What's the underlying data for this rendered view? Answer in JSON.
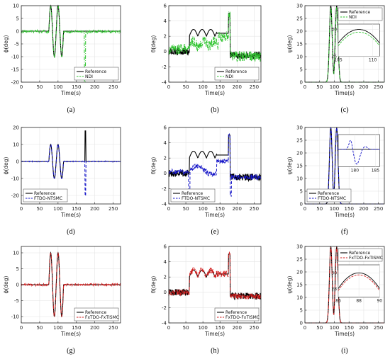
{
  "colors": {
    "reference": "#000000",
    "ndi": "#2ec42e",
    "ftdo": "#1717c8",
    "fxtdo": "#d21e1e",
    "grid": "#e4e4e4",
    "axis": "#262626"
  },
  "chart_data": [
    {
      "id": "a",
      "letter": "(a)",
      "type": "line",
      "kind": "phi",
      "ylabel": "ϕ(deg)",
      "xlabel": "Time(s)",
      "xlim": [
        0,
        270
      ],
      "ylim": [
        -20,
        10
      ],
      "xticks": [
        0,
        50,
        100,
        150,
        200,
        250
      ],
      "yticks": [
        -20,
        -15,
        -10,
        -5,
        0,
        5,
        10
      ],
      "legend": {
        "position": "bottom-right",
        "entries": [
          "Reference",
          "NDI"
        ]
      },
      "series": [
        {
          "name": "Reference",
          "color": "#000000",
          "dash": "solid"
        },
        {
          "name": "NDI",
          "color": "#2ec42e",
          "dash": "dashdot"
        }
      ]
    },
    {
      "id": "b",
      "letter": "(b)",
      "type": "line",
      "kind": "theta",
      "ylabel": "θ(deg)",
      "xlabel": "Time(s)",
      "xlim": [
        0,
        270
      ],
      "ylim": [
        -4,
        6
      ],
      "xticks": [
        0,
        50,
        100,
        150,
        200,
        250
      ],
      "yticks": [
        -4,
        -2,
        0,
        2,
        4,
        6
      ],
      "legend": {
        "position": "bottom-right",
        "entries": [
          "Reference",
          "NDI"
        ]
      },
      "series": [
        {
          "name": "Reference",
          "color": "#000000",
          "dash": "solid"
        },
        {
          "name": "NDI",
          "color": "#2ec42e",
          "dash": "dashdot"
        }
      ]
    },
    {
      "id": "c",
      "letter": "(c)",
      "type": "line",
      "kind": "psi",
      "ylabel": "ψ(deg)",
      "xlabel": "Time(s)",
      "xlim": [
        0,
        270
      ],
      "ylim": [
        0,
        30
      ],
      "xticks": [
        0,
        50,
        100,
        150,
        200,
        250
      ],
      "yticks": [
        0,
        5,
        10,
        15,
        20,
        25,
        30
      ],
      "legend": {
        "position": "top-right",
        "entries": [
          "Reference",
          "NDI"
        ]
      },
      "series": [
        {
          "name": "Reference",
          "color": "#000000",
          "dash": "solid"
        },
        {
          "name": "NDI",
          "color": "#2ec42e",
          "dash": "dashdot"
        }
      ],
      "inset": {
        "xlim": [
          105,
          111
        ],
        "ylim": [
          25,
          31
        ],
        "xticks": [
          105,
          110
        ],
        "yticks": [
          25,
          30
        ]
      }
    },
    {
      "id": "d",
      "letter": "(d)",
      "type": "line",
      "kind": "phi",
      "ylabel": "ϕ(deg)",
      "xlabel": "Time(s)",
      "xlim": [
        0,
        270
      ],
      "ylim": [
        -25,
        20
      ],
      "xticks": [
        0,
        50,
        100,
        150,
        200,
        250
      ],
      "yticks": [
        -20,
        -10,
        0,
        10,
        20
      ],
      "legend": {
        "position": "bottom-left",
        "entries": [
          "Reference",
          "FTDO-NTSMC"
        ]
      },
      "series": [
        {
          "name": "Reference",
          "color": "#000000",
          "dash": "solid"
        },
        {
          "name": "FTDO-NTSMC",
          "color": "#1717c8",
          "dash": "dashed"
        }
      ]
    },
    {
      "id": "e",
      "letter": "(e)",
      "type": "line",
      "kind": "theta",
      "ylabel": "θ(deg)",
      "xlabel": "Time(s)",
      "xlim": [
        0,
        270
      ],
      "ylim": [
        -4,
        6
      ],
      "xticks": [
        0,
        50,
        100,
        150,
        200,
        250
      ],
      "yticks": [
        -4,
        -2,
        0,
        2,
        4,
        6
      ],
      "legend": {
        "position": "bottom-left",
        "entries": [
          "Reference",
          "FTDO-NTSMC"
        ]
      },
      "series": [
        {
          "name": "Reference",
          "color": "#000000",
          "dash": "solid"
        },
        {
          "name": "FTDO-NTSMC",
          "color": "#1717c8",
          "dash": "dashed"
        }
      ]
    },
    {
      "id": "f",
      "letter": "(f)",
      "type": "line",
      "kind": "psi",
      "ylabel": "ψ(deg)",
      "xlabel": "Time(s)",
      "xlim": [
        0,
        270
      ],
      "ylim": [
        0,
        30
      ],
      "xticks": [
        0,
        50,
        100,
        150,
        200,
        250
      ],
      "yticks": [
        0,
        5,
        10,
        15,
        20,
        25,
        30
      ],
      "legend": {
        "position": "bottom-left",
        "entries": [
          "Reference",
          "FTDO-NTSMC"
        ]
      },
      "series": [
        {
          "name": "Reference",
          "color": "#000000",
          "dash": "solid"
        },
        {
          "name": "FTDO-NTSMC",
          "color": "#1717c8",
          "dash": "dashed"
        }
      ],
      "inset": {
        "xlim": [
          176,
          186
        ],
        "ylim": [
          -7,
          6
        ],
        "xticks": [
          180,
          185
        ],
        "yticks": []
      }
    },
    {
      "id": "g",
      "letter": "(g)",
      "type": "line",
      "kind": "phi",
      "ylabel": "ϕ(deg)",
      "xlabel": "Time(s)",
      "xlim": [
        0,
        270
      ],
      "ylim": [
        -12,
        12
      ],
      "xticks": [
        0,
        50,
        100,
        150,
        200,
        250
      ],
      "yticks": [
        -10,
        -5,
        0,
        5,
        10
      ],
      "legend": {
        "position": "bottom-right",
        "entries": [
          "Reference",
          "FxTDO-FxTISMC"
        ]
      },
      "series": [
        {
          "name": "Reference",
          "color": "#000000",
          "dash": "solid"
        },
        {
          "name": "FxTDO-FxTISMC",
          "color": "#d21e1e",
          "dash": "dashdot"
        }
      ]
    },
    {
      "id": "h",
      "letter": "(h)",
      "type": "line",
      "kind": "theta",
      "ylabel": "θ(deg)",
      "xlabel": "Time(s)",
      "xlim": [
        0,
        270
      ],
      "ylim": [
        -4,
        6
      ],
      "xticks": [
        0,
        50,
        100,
        150,
        200,
        250
      ],
      "yticks": [
        -4,
        -2,
        0,
        2,
        4,
        6
      ],
      "legend": {
        "position": "bottom-right",
        "entries": [
          "Reference",
          "FxTDO-FxTISMC"
        ]
      },
      "series": [
        {
          "name": "Reference",
          "color": "#000000",
          "dash": "solid"
        },
        {
          "name": "FxTDO-FxTISMC",
          "color": "#d21e1e",
          "dash": "dashdot"
        }
      ]
    },
    {
      "id": "i",
      "letter": "(i)",
      "type": "line",
      "kind": "psi",
      "ylabel": "ψ(deg)",
      "xlabel": "Time(s)",
      "xlim": [
        0,
        270
      ],
      "ylim": [
        0,
        30
      ],
      "xticks": [
        0,
        50,
        100,
        150,
        200,
        250
      ],
      "yticks": [
        0,
        5,
        10,
        15,
        20,
        25,
        30
      ],
      "legend": {
        "position": "top-right",
        "entries": [
          "Reference",
          "FxTDO-FxTISMC"
        ]
      },
      "series": [
        {
          "name": "Reference",
          "color": "#000000",
          "dash": "solid"
        },
        {
          "name": "FxTDO-FxTISMC",
          "color": "#d21e1e",
          "dash": "dashdot"
        }
      ],
      "inset": {
        "xlim": [
          86,
          90
        ],
        "ylim": [
          27,
          31
        ],
        "xticks": [
          86,
          88,
          90
        ],
        "yticks": [
          28,
          30
        ]
      }
    }
  ]
}
